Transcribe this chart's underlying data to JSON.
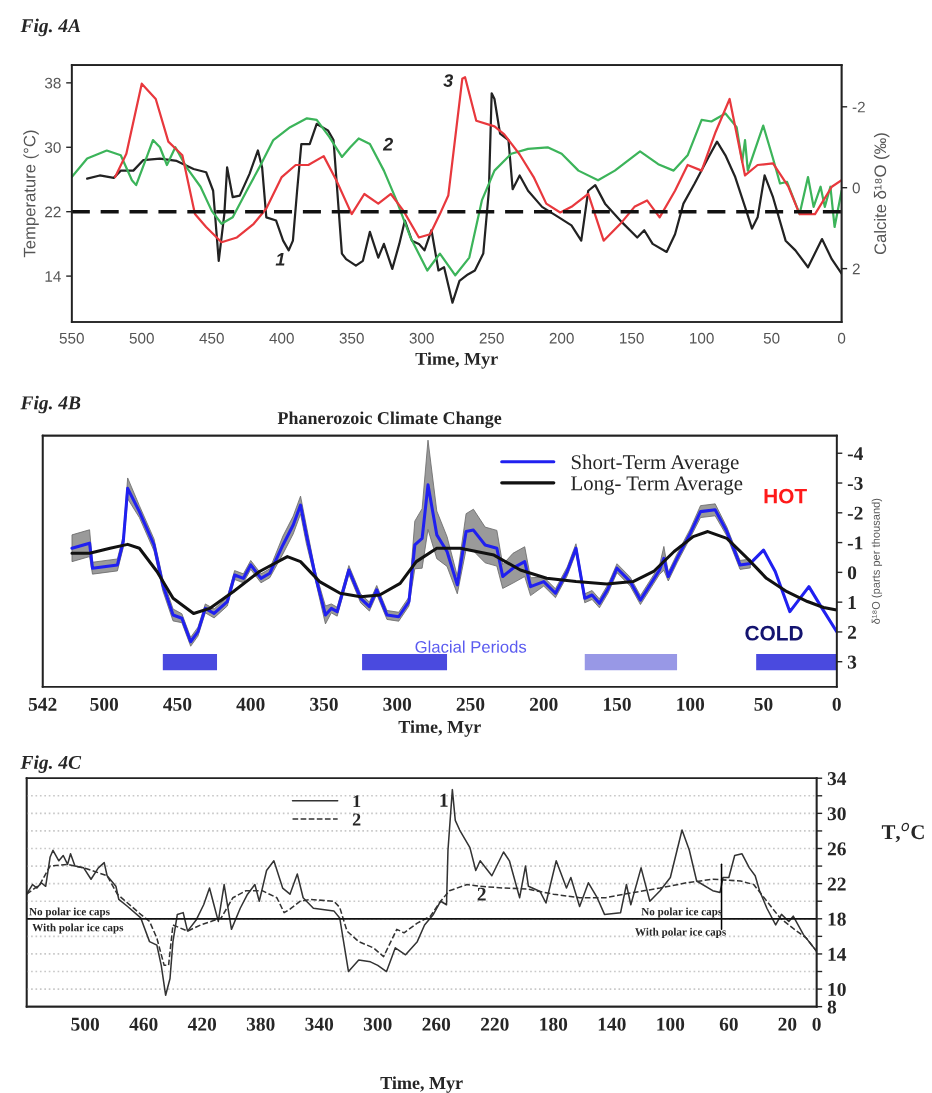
{
  "chart_data": [
    {
      "type": "line",
      "title": "Fig. 4A",
      "xlabel": "Time, Myr",
      "ylabel": "Temperature (°C)",
      "y2label": "Calcite δ¹⁸O (‰)",
      "xlim": [
        550,
        0
      ],
      "xticks": [
        550,
        500,
        450,
        400,
        350,
        300,
        250,
        200,
        150,
        100,
        50,
        0
      ],
      "ylim": [
        8.3,
        40.2
      ],
      "yticks": [
        14,
        22,
        30,
        38
      ],
      "y2lim": [
        3.32,
        -3.03
      ],
      "y2ticks": [
        -2,
        0,
        2
      ],
      "ref_lines": [
        {
          "axis": "y",
          "value": 22,
          "color": "#111111",
          "line_style": "dashed"
        }
      ],
      "annotations": [
        "1",
        "2",
        "3"
      ],
      "series": [
        {
          "color": "#222222",
          "x": [
            539,
            530,
            520,
            515,
            506,
            499,
            487,
            475,
            463,
            454,
            449,
            445,
            441,
            439,
            435,
            430,
            423,
            417,
            414,
            411,
            404,
            399,
            395,
            392,
            389,
            386,
            380,
            375,
            367,
            363,
            357,
            354,
            347,
            342,
            337,
            331,
            327,
            321,
            316,
            312,
            307,
            302,
            298,
            293,
            288,
            284,
            278,
            273,
            267,
            262,
            256,
            252,
            250,
            248,
            244,
            238,
            235,
            230,
            224,
            214,
            202,
            193,
            186,
            181,
            176,
            169,
            157,
            146,
            141,
            135,
            125,
            119,
            113,
            105,
            95,
            89,
            83,
            76,
            69,
            64,
            60,
            55,
            49,
            40,
            33,
            24,
            14,
            7,
            0
          ],
          "values": [
            26.1,
            26.5,
            26.2,
            27.1,
            27.1,
            28.4,
            28.6,
            28.3,
            27.3,
            26.9,
            24.6,
            15.9,
            21.7,
            27.5,
            23.8,
            24.0,
            26.7,
            29.6,
            27.5,
            21.3,
            20.9,
            18.4,
            17.2,
            18.4,
            24.6,
            30.4,
            30.4,
            32.9,
            32.1,
            30.9,
            16.8,
            16.1,
            15.3,
            15.9,
            19.5,
            16.3,
            18.0,
            14.9,
            18.0,
            20.9,
            18.4,
            18.0,
            17.2,
            19.7,
            14.7,
            15.1,
            10.7,
            13.4,
            14.2,
            14.7,
            16.8,
            24.6,
            36.7,
            36.0,
            31.7,
            30.9,
            24.8,
            26.5,
            24.6,
            22.6,
            21.3,
            20.3,
            18.4,
            24.6,
            25.3,
            23.0,
            20.7,
            18.8,
            19.7,
            18.0,
            17.0,
            19.2,
            23.0,
            25.5,
            28.8,
            30.7,
            29.0,
            26.3,
            22.6,
            19.9,
            21.3,
            26.5,
            23.8,
            18.4,
            17.2,
            15.1,
            18.6,
            16.1,
            14.3
          ]
        },
        {
          "color": "#3cb45a",
          "x": [
            550,
            539,
            525,
            515,
            507,
            504,
            496,
            492,
            487,
            482,
            476,
            468,
            458,
            450,
            443,
            435,
            425,
            416,
            406,
            394,
            382,
            375,
            366,
            357,
            351,
            345,
            337,
            327,
            318,
            308,
            296,
            287,
            276,
            266,
            257,
            248,
            236,
            224,
            210,
            200,
            188,
            174,
            162,
            144,
            131,
            120,
            110,
            100,
            93,
            83,
            75,
            71,
            69,
            67,
            56,
            49,
            44,
            39,
            30,
            24,
            20,
            15,
            12,
            8,
            5,
            0
          ],
          "values": [
            26.3,
            28.6,
            29.6,
            29.0,
            25.9,
            25.3,
            29.0,
            30.9,
            30.0,
            27.8,
            30.0,
            27.5,
            25.1,
            22.1,
            20.5,
            21.3,
            24.6,
            27.5,
            30.9,
            32.5,
            33.6,
            33.4,
            31.3,
            28.8,
            30.0,
            31.1,
            30.4,
            27.1,
            23.4,
            18.8,
            14.7,
            16.8,
            14.1,
            16.3,
            23.4,
            27.1,
            29.2,
            29.8,
            30.0,
            29.2,
            27.1,
            25.9,
            27.1,
            29.5,
            27.9,
            27.1,
            29.0,
            33.4,
            33.2,
            34.2,
            32.5,
            28.2,
            30.9,
            27.1,
            32.7,
            28.6,
            25.5,
            25.7,
            21.7,
            26.3,
            22.6,
            25.1,
            22.6,
            25.1,
            20.1,
            24.6
          ]
        },
        {
          "color": "#e8383d",
          "x": [
            519,
            511,
            500,
            490,
            481,
            471,
            462,
            454,
            443,
            432,
            420,
            411,
            400,
            390,
            381,
            370,
            361,
            350,
            341,
            331,
            322,
            313,
            302,
            294,
            287,
            281,
            271,
            269,
            261,
            248,
            241,
            230,
            220,
            211,
            201,
            193,
            181,
            170,
            157,
            148,
            139,
            130,
            119,
            110,
            100,
            90,
            80,
            69,
            60,
            49,
            38,
            30,
            19,
            7,
            0
          ],
          "values": [
            26.3,
            29.2,
            37.9,
            36.0,
            30.7,
            29.0,
            21.7,
            20.1,
            18.2,
            18.8,
            20.5,
            22.4,
            26.3,
            27.8,
            27.8,
            28.9,
            25.9,
            21.7,
            24.2,
            23.0,
            24.2,
            22.1,
            18.8,
            19.2,
            21.7,
            24.0,
            38.5,
            38.7,
            33.3,
            32.6,
            31.6,
            29.1,
            26.3,
            23.0,
            21.9,
            22.6,
            24.2,
            18.4,
            20.7,
            22.6,
            23.4,
            21.3,
            24.6,
            27.8,
            27.1,
            31.9,
            36.0,
            26.5,
            27.8,
            28.0,
            25.1,
            21.7,
            21.7,
            25.1,
            25.9
          ]
        }
      ]
    },
    {
      "type": "line",
      "title": "Fig. 4B",
      "subtitle": "Phanerozoic Climate Change",
      "xlabel": "Time, Myr",
      "y2label": "δ¹⁸O (parts per thousand)",
      "xlim": [
        542,
        0
      ],
      "xticks": [
        542,
        500,
        450,
        400,
        350,
        300,
        250,
        200,
        150,
        100,
        50,
        0
      ],
      "y2lim": [
        3.84,
        -4.59
      ],
      "y2ticks": [
        -4,
        -3,
        -2,
        -1,
        0,
        1,
        2,
        3
      ],
      "legend": "top",
      "bands": [
        {
          "axis": "x",
          "from": 460,
          "to": 423,
          "color": "#4a4adf"
        },
        {
          "axis": "x",
          "from": 324,
          "to": 266,
          "color": "#4a4adf"
        },
        {
          "axis": "x",
          "from": 172,
          "to": 109,
          "color": "#9898e6"
        },
        {
          "axis": "x",
          "from": 55,
          "to": 0,
          "color": "#4a4adf"
        }
      ],
      "annotations": [
        "HOT",
        "Glacial Periods",
        "COLD"
      ],
      "series": [
        {
          "name": "Short-Term Average",
          "color": "#2020f0",
          "axis": "y2",
          "x": [
            522,
            510,
            508,
            491,
            487,
            484,
            476,
            466,
            460,
            453,
            447,
            441,
            436,
            431,
            425,
            416,
            411,
            405,
            400,
            393,
            387,
            378,
            371,
            366,
            362,
            356,
            349,
            345,
            341,
            333,
            325,
            319,
            314,
            307,
            299,
            292,
            288,
            283,
            279,
            273,
            266,
            259,
            253,
            248,
            240,
            232,
            228,
            221,
            213,
            209,
            200,
            192,
            184,
            178,
            172,
            167,
            162,
            156,
            150,
            141,
            134,
            126,
            121,
            118,
            115,
            109,
            100,
            93,
            83,
            75,
            66,
            59,
            50,
            42,
            32,
            19,
            10,
            0
          ],
          "values": [
            -0.81,
            -0.98,
            -0.14,
            -0.25,
            -1.03,
            -2.82,
            -2.04,
            -0.92,
            0.42,
            1.43,
            1.54,
            2.33,
            1.99,
            1.21,
            1.38,
            0.98,
            0.09,
            0.2,
            -0.25,
            0.2,
            0.03,
            -0.92,
            -1.59,
            -2.26,
            -1.26,
            0.09,
            1.43,
            1.21,
            1.32,
            -0.08,
            0.87,
            1.15,
            0.59,
            1.43,
            1.49,
            0.98,
            -0.92,
            -1.14,
            -2.94,
            -1.26,
            -0.7,
            0.42,
            -1.37,
            -1.42,
            -0.92,
            -0.81,
            0.14,
            -0.14,
            -0.36,
            0.48,
            0.31,
            0.7,
            -0.03,
            -0.81,
            0.87,
            0.76,
            1.04,
            0.54,
            -0.14,
            0.31,
            0.93,
            0.31,
            -0.08,
            -0.47,
            0.14,
            -0.47,
            -1.31,
            -2.04,
            -2.1,
            -1.37,
            -0.25,
            -0.3,
            -0.75,
            -0.03,
            1.32,
            0.48,
            1.21,
            1.99
          ],
          "lower": [
            -1.26,
            -1.43,
            -0.34,
            -0.45,
            -1.23,
            -3.17,
            -2.24,
            -1.12,
            0.22,
            1.23,
            1.39,
            2.18,
            1.84,
            1.06,
            1.23,
            0.83,
            -0.06,
            0.05,
            -0.4,
            0.05,
            -0.12,
            -1.22,
            -1.89,
            -2.56,
            -1.56,
            -0.06,
            1.13,
            1.06,
            1.17,
            -0.23,
            0.72,
            1.0,
            0.44,
            1.28,
            1.34,
            0.83,
            -1.72,
            -2.14,
            -4.44,
            -2.06,
            -1.2,
            0.12,
            -1.97,
            -2.12,
            -1.52,
            -1.41,
            -0.26,
            -0.64,
            -0.86,
            0.18,
            0.16,
            0.55,
            -0.18,
            -0.96,
            0.72,
            0.61,
            0.89,
            0.39,
            -0.29,
            0.16,
            0.78,
            0.16,
            -0.23,
            -0.87,
            -0.01,
            -0.62,
            -1.46,
            -2.24,
            -2.3,
            -1.52,
            -0.4,
            -0.45,
            null,
            null,
            null,
            null,
            null,
            null
          ],
          "upper": [
            -0.36,
            -0.53,
            0.06,
            -0.05,
            -0.83,
            -2.47,
            -1.84,
            -0.72,
            0.62,
            1.63,
            1.69,
            2.48,
            2.14,
            1.36,
            1.53,
            1.13,
            0.24,
            0.35,
            -0.1,
            0.35,
            0.18,
            -0.62,
            -1.29,
            -1.96,
            -0.96,
            0.24,
            1.73,
            1.36,
            1.47,
            0.07,
            1.02,
            1.3,
            0.74,
            1.58,
            1.64,
            1.13,
            -0.12,
            -0.14,
            -1.44,
            -0.46,
            -0.2,
            0.72,
            -0.77,
            -0.72,
            -0.32,
            -0.21,
            0.54,
            0.36,
            0.14,
            0.78,
            0.46,
            0.85,
            0.12,
            -0.66,
            1.02,
            0.91,
            1.19,
            0.69,
            0.01,
            0.46,
            1.08,
            0.46,
            0.07,
            -0.07,
            0.29,
            -0.32,
            -1.16,
            -1.84,
            -1.9,
            -1.22,
            -0.1,
            -0.15,
            null,
            null,
            null,
            null,
            null,
            null
          ]
        },
        {
          "name": "Long- Term Average",
          "color": "#111111",
          "axis": "y2",
          "x": [
            522,
            510,
            496,
            484,
            476,
            464,
            453,
            439,
            428,
            412,
            394,
            375,
            366,
            353,
            339,
            325,
            312,
            298,
            287,
            273,
            257,
            234,
            216,
            198,
            178,
            157,
            139,
            125,
            111,
            98,
            88,
            75,
            61,
            48,
            34,
            20,
            9,
            0
          ],
          "values": [
            -0.64,
            -0.64,
            -0.81,
            -0.94,
            -0.81,
            -0.03,
            0.87,
            1.38,
            1.21,
            0.65,
            -0.03,
            -0.53,
            -0.36,
            0.31,
            0.7,
            0.82,
            0.76,
            0.37,
            -0.36,
            -0.81,
            -0.81,
            -0.58,
            -0.08,
            0.2,
            0.31,
            0.39,
            0.31,
            -0.03,
            -0.7,
            -1.2,
            -1.37,
            -1.14,
            -0.47,
            0.2,
            0.65,
            0.98,
            1.18,
            1.26
          ]
        }
      ]
    },
    {
      "type": "line",
      "title": "Fig. 4C",
      "xlabel": "Time, Myr",
      "y2label": "T,$^{o}$C",
      "xlim": [
        540,
        0
      ],
      "xticks": [
        500,
        460,
        420,
        380,
        340,
        300,
        260,
        220,
        180,
        140,
        100,
        60,
        20,
        0
      ],
      "y2lim": [
        8,
        34
      ],
      "y2ticks": [
        8,
        10,
        {
          "value": 12,
          "label": null
        },
        14,
        {
          "value": 16,
          "label": null
        },
        18,
        {
          "value": 20,
          "label": null
        },
        22,
        {
          "value": 24,
          "label": null
        },
        26,
        {
          "value": 28,
          "label": null
        },
        30,
        {
          "value": 32,
          "label": null
        },
        34
      ],
      "grid": "y",
      "legend": "top",
      "ref_lines": [
        {
          "axis": "y2",
          "value": 18,
          "color": "#111111",
          "line_style": "solid"
        }
      ],
      "annotations": [
        "1",
        "2",
        "No polar ice caps",
        "With polar ice caps",
        "No polar ice caps",
        "With polar ice caps"
      ],
      "series": [
        {
          "name": "1",
          "color": "#333333",
          "axis": "y2",
          "line_style": "solid",
          "x": [
            540,
            536,
            533,
            530,
            527,
            524,
            522,
            518,
            515,
            512,
            510,
            507,
            501,
            496,
            491,
            487,
            485,
            479,
            477,
            471,
            462,
            456,
            451,
            448,
            445,
            442,
            440,
            437,
            433,
            430,
            424,
            419,
            415,
            412,
            409,
            405,
            400,
            394,
            389,
            384,
            381,
            376,
            371,
            365,
            360,
            355,
            351,
            344,
            330,
            326,
            320,
            313,
            305,
            300,
            294,
            288,
            281,
            273,
            268,
            262,
            257,
            253,
            252,
            249,
            247,
            244,
            237,
            233,
            230,
            222,
            214,
            210,
            203,
            199,
            197,
            189,
            185,
            178,
            171,
            168,
            162,
            156,
            150,
            145,
            134,
            130,
            127,
            120,
            114,
            107,
            100,
            92,
            87,
            82,
            71,
            66,
            64,
            60,
            56,
            51,
            46,
            42,
            39,
            34,
            28,
            24,
            19,
            16,
            9,
            0
          ],
          "values": [
            20.8,
            21.9,
            21.5,
            22.1,
            21.7,
            25.0,
            25.8,
            24.6,
            25.2,
            24.2,
            25.4,
            24.0,
            23.8,
            22.5,
            23.8,
            24.4,
            22.9,
            21.7,
            20.2,
            19.4,
            18.1,
            15.4,
            15.0,
            12.7,
            9.3,
            11.2,
            15.4,
            18.5,
            18.7,
            16.6,
            17.9,
            19.6,
            21.5,
            19.6,
            17.7,
            21.9,
            16.8,
            19.2,
            20.8,
            21.9,
            20.0,
            23.5,
            24.6,
            21.5,
            20.8,
            23.1,
            20.4,
            19.2,
            18.9,
            18.1,
            12.0,
            13.3,
            13.1,
            12.7,
            12.0,
            14.7,
            13.9,
            15.4,
            17.3,
            18.5,
            20.0,
            19.6,
            25.8,
            32.7,
            29.2,
            28.1,
            26.1,
            23.5,
            24.6,
            22.9,
            25.6,
            24.6,
            20.4,
            24.0,
            21.7,
            21.1,
            19.8,
            24.6,
            21.5,
            22.7,
            19.4,
            22.1,
            20.4,
            18.5,
            18.7,
            21.9,
            19.6,
            23.8,
            20.0,
            21.2,
            22.7,
            28.1,
            25.8,
            22.3,
            21.2,
            21.0,
            22.7,
            22.7,
            25.2,
            25.4,
            23.8,
            22.9,
            21.2,
            19.2,
            17.3,
            18.5,
            17.7,
            18.3,
            16.2,
            14.3
          ]
        },
        {
          "name": "2",
          "color": "#333333",
          "axis": "y2",
          "line_style": "dashed",
          "x": [
            540,
            531,
            524,
            512,
            499,
            485,
            478,
            471,
            462,
            456,
            451,
            446,
            443,
            440,
            430,
            421,
            407,
            399,
            390,
            379,
            369,
            364,
            360,
            353,
            346,
            330,
            326,
            321,
            313,
            303,
            296,
            287,
            282,
            273,
            264,
            257,
            251,
            239,
            230,
            214,
            198,
            180,
            162,
            144,
            125,
            107,
            89,
            71,
            52,
            43,
            34,
            25,
            16,
            7,
            0
          ],
          "values": [
            20.8,
            21.9,
            24.0,
            24.2,
            23.7,
            22.9,
            20.8,
            19.8,
            18.5,
            17.7,
            15.8,
            12.7,
            12.7,
            17.3,
            16.6,
            17.3,
            18.1,
            20.4,
            21.2,
            21.2,
            20.4,
            18.7,
            19.1,
            20.0,
            20.2,
            20.0,
            19.3,
            16.6,
            15.4,
            14.7,
            13.7,
            16.8,
            16.4,
            17.5,
            18.3,
            20.0,
            21.2,
            21.9,
            21.7,
            21.5,
            21.4,
            20.8,
            20.4,
            20.4,
            21.0,
            21.5,
            22.1,
            22.5,
            22.3,
            21.9,
            20.0,
            18.1,
            16.9,
            15.8,
            14.3
          ]
        },
        {
          "color": "#000000",
          "axis": "y2",
          "line_style": "solid",
          "x": [
            65,
            65
          ],
          "values": [
            24.2,
            16.8
          ]
        }
      ]
    }
  ]
}
